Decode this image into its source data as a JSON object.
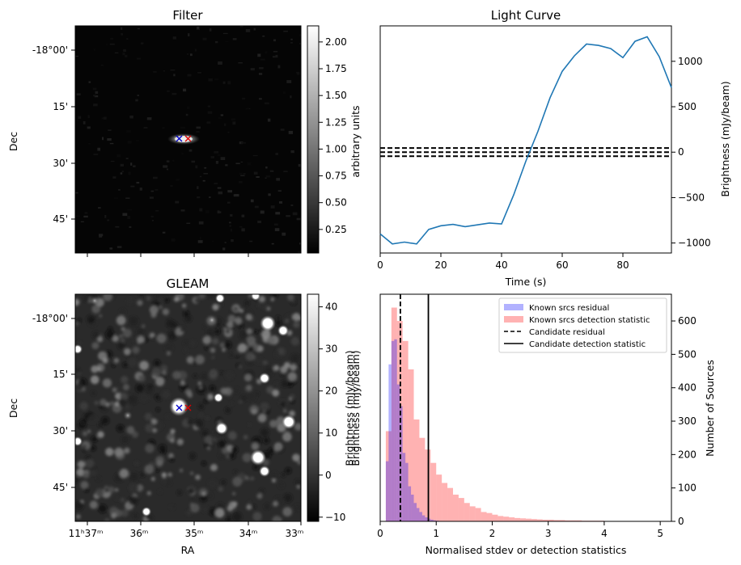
{
  "chart_data": [
    {
      "type": "heatmap",
      "title": "Filter",
      "ylabel": "Dec",
      "y_ticks": [
        "-18°00'",
        "15'",
        "30'",
        "45'"
      ],
      "colorbar": {
        "label": "arbitrary units",
        "range": [
          0.03,
          2.15
        ],
        "ticks": [
          "0.25",
          "0.50",
          "0.75",
          "1.00",
          "1.25",
          "1.50",
          "1.75",
          "2.00"
        ]
      },
      "markers": [
        {
          "type": "x",
          "color": "#0000cc"
        },
        {
          "type": "x",
          "color": "#dd0000"
        }
      ]
    },
    {
      "type": "line",
      "title": "Light Curve",
      "xlabel": "Time (s)",
      "ylabel": "Brightness (mJy/beam)",
      "xlim": [
        0,
        96
      ],
      "ylim": [
        -1110,
        1390
      ],
      "x_ticks": [
        "0",
        "20",
        "40",
        "60",
        "80"
      ],
      "y_ticks": [
        "−1000",
        "−500",
        "0",
        "500",
        "1000"
      ],
      "series": [
        {
          "name": "light curve",
          "color": "#1f77b4",
          "x": [
            0,
            4,
            8,
            12,
            16,
            20,
            24,
            28,
            32,
            36,
            40,
            44,
            48,
            52,
            56,
            60,
            64,
            68,
            72,
            76,
            80,
            84,
            88,
            92,
            96
          ],
          "y": [
            -900,
            -1010,
            -990,
            -1010,
            -850,
            -810,
            -795,
            -820,
            -800,
            -780,
            -790,
            -470,
            -100,
            230,
            600,
            890,
            1060,
            1190,
            1175,
            1140,
            1040,
            1220,
            1270,
            1050,
            710
          ]
        }
      ],
      "hlines": [
        45,
        0,
        -45
      ]
    },
    {
      "type": "heatmap",
      "title": "GLEAM",
      "xlabel": "RA",
      "ylabel": "Dec",
      "x_ticks": [
        "11ʰ37ᵐ",
        "36ᵐ",
        "35ᵐ",
        "34ᵐ",
        "33ᵐ"
      ],
      "y_ticks": [
        "-18°00'",
        "15'",
        "30'",
        "45'"
      ],
      "colorbar": {
        "label": "Brightness (mJy/beam)",
        "range": [
          -11,
          43
        ],
        "ticks": [
          "−10",
          "0",
          "10",
          "20",
          "30",
          "40"
        ]
      },
      "markers": [
        {
          "type": "x",
          "color": "#0000cc"
        },
        {
          "type": "x",
          "color": "#dd0000"
        }
      ]
    },
    {
      "type": "bar",
      "title": "",
      "xlabel": "Normalised stdev or detection statistics",
      "ylabel": "Number of Sources",
      "xlim": [
        0,
        5.2
      ],
      "ylim": [
        0,
        680
      ],
      "x_ticks": [
        "0",
        "1",
        "2",
        "3",
        "4",
        "5"
      ],
      "y_ticks": [
        "0",
        "100",
        "200",
        "300",
        "400",
        "500",
        "600"
      ],
      "bin_width": 0.1,
      "series": [
        {
          "name": "Known srcs residual",
          "color": "#0000ff",
          "alpha": 0.3,
          "bin_start": 0.0,
          "bin_width": 0.05,
          "values": [
            0,
            0,
            180,
            470,
            540,
            545,
            410,
            345,
            205,
            175,
            105,
            80,
            55,
            40,
            28,
            18,
            12,
            8,
            5,
            3,
            2,
            1
          ]
        },
        {
          "name": "Known srcs detection statistic",
          "color": "#ff0000",
          "alpha": 0.3,
          "bin_start": 0.0,
          "bin_width": 0.1,
          "values": [
            0,
            270,
            640,
            600,
            540,
            455,
            305,
            250,
            215,
            175,
            140,
            115,
            100,
            80,
            70,
            55,
            45,
            40,
            28,
            25,
            20,
            16,
            14,
            12,
            10,
            9,
            8,
            7,
            6,
            5,
            5,
            4,
            4,
            3,
            3,
            3,
            2,
            2,
            2,
            2,
            1,
            1,
            1,
            1,
            1,
            1,
            1,
            1,
            1,
            1
          ]
        }
      ],
      "vlines": [
        {
          "name": "Candidate residual",
          "x": 0.36,
          "style": "dashed"
        },
        {
          "name": "Candidate detection statistic",
          "x": 0.86,
          "style": "solid"
        }
      ],
      "left_axis_label": "Brightness (mJy/beam)"
    }
  ]
}
